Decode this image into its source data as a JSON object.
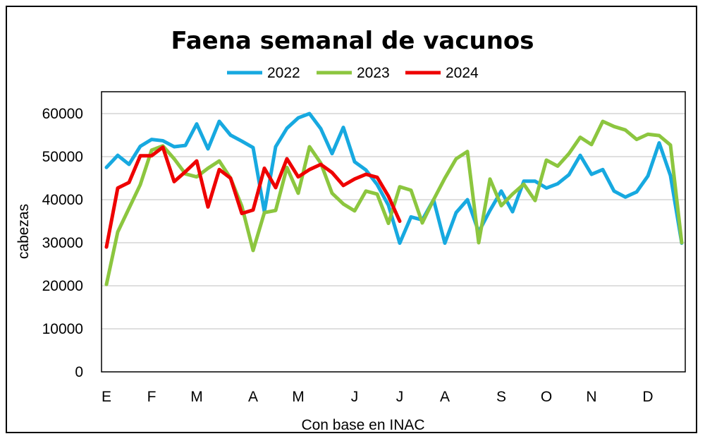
{
  "chart_data": {
    "type": "line",
    "title": "Faena semanal de vacunos",
    "ylabel": "cabezas",
    "xlabel": "Con base en INAC",
    "ylim": [
      0,
      60000
    ],
    "yticks": [
      0,
      10000,
      20000,
      30000,
      40000,
      50000,
      60000
    ],
    "grid": true,
    "legend": "top",
    "month_ticks": [
      {
        "label": "E",
        "week": 1
      },
      {
        "label": "F",
        "week": 5
      },
      {
        "label": "M",
        "week": 9
      },
      {
        "label": "A",
        "week": 14
      },
      {
        "label": "M",
        "week": 18
      },
      {
        "label": "J",
        "week": 23
      },
      {
        "label": "J",
        "week": 27
      },
      {
        "label": "A",
        "week": 31
      },
      {
        "label": "S",
        "week": 36
      },
      {
        "label": "O",
        "week": 40
      },
      {
        "label": "N",
        "week": 44
      },
      {
        "label": "D",
        "week": 49
      }
    ],
    "series": [
      {
        "name": "2022",
        "color": "#17a9e0",
        "values": [
          47500,
          50300,
          48200,
          52400,
          54000,
          53700,
          52300,
          52600,
          57600,
          51800,
          58200,
          55000,
          53600,
          52100,
          37200,
          52300,
          56600,
          59000,
          60000,
          56500,
          50700,
          56800,
          48800,
          46900,
          43500,
          38700,
          29900,
          36000,
          35300,
          40000,
          29900,
          37000,
          40000,
          32500,
          37500,
          42000,
          37200,
          44300,
          44300,
          42700,
          43700,
          45800,
          50300,
          45900,
          47000,
          42000,
          40600,
          41800,
          45500,
          53200,
          45600,
          29900
        ]
      },
      {
        "name": "2023",
        "color": "#8cc63f",
        "values": [
          20300,
          32500,
          38000,
          43500,
          51500,
          52500,
          49500,
          46000,
          45300,
          47300,
          49000,
          45000,
          38500,
          28200,
          37000,
          37500,
          47500,
          41500,
          52300,
          48500,
          41500,
          39000,
          37400,
          42000,
          41300,
          34500,
          43000,
          42200,
          34600,
          40000,
          45000,
          49500,
          51200,
          30000,
          44800,
          38600,
          41300,
          43600,
          39800,
          49200,
          47800,
          50700,
          54500,
          52800,
          58200,
          57000,
          56200,
          54000,
          55200,
          54900,
          52700,
          30000
        ]
      },
      {
        "name": "2024",
        "color": "#ee0000",
        "values": [
          29000,
          42700,
          44000,
          50200,
          50200,
          52200,
          44200,
          46500,
          49000,
          38300,
          47000,
          45000,
          36800,
          37600,
          47300,
          42800,
          49500,
          45300,
          47000,
          48200,
          46300,
          43300,
          44800,
          45900,
          45200,
          40800,
          35000
        ]
      }
    ]
  }
}
